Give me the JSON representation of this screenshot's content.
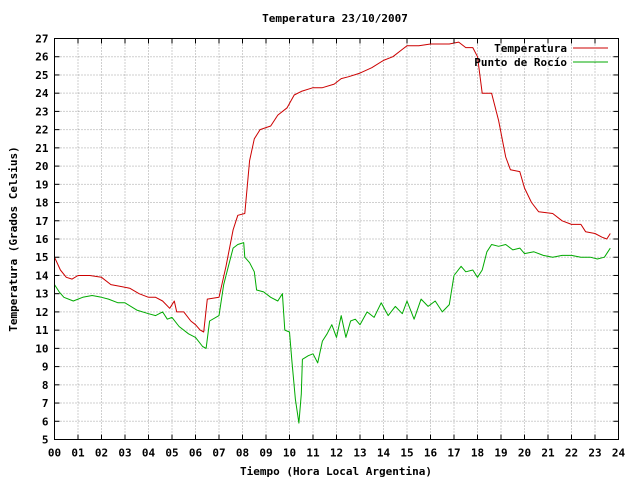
{
  "chart_data": {
    "type": "line",
    "title": "Temperatura 23/10/2007",
    "xlabel": "Tiempo (Hora Local Argentina)",
    "ylabel": "Temperatura (Grados Celsius)",
    "xlim": [
      0,
      24
    ],
    "ylim": [
      5,
      27
    ],
    "x_ticks": [
      "00",
      "01",
      "02",
      "03",
      "04",
      "05",
      "06",
      "07",
      "08",
      "09",
      "10",
      "11",
      "12",
      "13",
      "14",
      "15",
      "16",
      "17",
      "18",
      "19",
      "20",
      "21",
      "22",
      "23",
      "24"
    ],
    "y_ticks": [
      "5",
      "6",
      "7",
      "8",
      "9",
      "10",
      "11",
      "12",
      "13",
      "14",
      "15",
      "16",
      "17",
      "18",
      "19",
      "20",
      "21",
      "22",
      "23",
      "24",
      "25",
      "26",
      "27"
    ],
    "grid": true,
    "legend_position": "top-right",
    "series": [
      {
        "name": "Temperatura",
        "color": "#cc0000",
        "points": [
          [
            0.0,
            15.0
          ],
          [
            0.25,
            14.3
          ],
          [
            0.5,
            13.9
          ],
          [
            0.75,
            13.8
          ],
          [
            1.0,
            14.0
          ],
          [
            1.5,
            14.0
          ],
          [
            2.0,
            13.9
          ],
          [
            2.4,
            13.5
          ],
          [
            2.8,
            13.4
          ],
          [
            3.2,
            13.3
          ],
          [
            3.6,
            13.0
          ],
          [
            4.0,
            12.8
          ],
          [
            4.3,
            12.8
          ],
          [
            4.6,
            12.6
          ],
          [
            4.9,
            12.2
          ],
          [
            5.1,
            12.6
          ],
          [
            5.2,
            12.0
          ],
          [
            5.5,
            12.0
          ],
          [
            5.8,
            11.5
          ],
          [
            6.0,
            11.3
          ],
          [
            6.2,
            11.0
          ],
          [
            6.35,
            10.9
          ],
          [
            6.5,
            12.7
          ],
          [
            7.0,
            12.8
          ],
          [
            7.3,
            14.5
          ],
          [
            7.6,
            16.5
          ],
          [
            7.8,
            17.3
          ],
          [
            8.1,
            17.4
          ],
          [
            8.3,
            20.3
          ],
          [
            8.5,
            21.5
          ],
          [
            8.75,
            22.0
          ],
          [
            9.2,
            22.2
          ],
          [
            9.5,
            22.8
          ],
          [
            9.9,
            23.2
          ],
          [
            10.2,
            23.9
          ],
          [
            10.5,
            24.1
          ],
          [
            11.0,
            24.3
          ],
          [
            11.4,
            24.3
          ],
          [
            11.9,
            24.5
          ],
          [
            12.2,
            24.8
          ],
          [
            12.5,
            24.9
          ],
          [
            13.0,
            25.1
          ],
          [
            13.5,
            25.4
          ],
          [
            14.0,
            25.8
          ],
          [
            14.4,
            26.0
          ],
          [
            14.8,
            26.4
          ],
          [
            15.0,
            26.6
          ],
          [
            15.5,
            26.6
          ],
          [
            16.0,
            26.7
          ],
          [
            16.4,
            26.7
          ],
          [
            16.8,
            26.7
          ],
          [
            17.2,
            26.8
          ],
          [
            17.5,
            26.5
          ],
          [
            17.8,
            26.5
          ],
          [
            18.0,
            26.0
          ],
          [
            18.2,
            24.0
          ],
          [
            18.6,
            24.0
          ],
          [
            18.9,
            22.5
          ],
          [
            19.2,
            20.5
          ],
          [
            19.4,
            19.8
          ],
          [
            19.8,
            19.7
          ],
          [
            20.0,
            18.8
          ],
          [
            20.3,
            18.0
          ],
          [
            20.6,
            17.5
          ],
          [
            21.2,
            17.4
          ],
          [
            21.6,
            17.0
          ],
          [
            22.0,
            16.8
          ],
          [
            22.4,
            16.8
          ],
          [
            22.6,
            16.4
          ],
          [
            23.0,
            16.3
          ],
          [
            23.3,
            16.1
          ],
          [
            23.5,
            16.0
          ],
          [
            23.65,
            16.3
          ]
        ]
      },
      {
        "name": "Punto de Rocío",
        "color": "#00aa00",
        "points": [
          [
            0.0,
            13.5
          ],
          [
            0.2,
            13.1
          ],
          [
            0.4,
            12.8
          ],
          [
            0.8,
            12.6
          ],
          [
            1.2,
            12.8
          ],
          [
            1.6,
            12.9
          ],
          [
            2.0,
            12.8
          ],
          [
            2.3,
            12.7
          ],
          [
            2.7,
            12.5
          ],
          [
            3.0,
            12.5
          ],
          [
            3.5,
            12.1
          ],
          [
            4.0,
            11.9
          ],
          [
            4.3,
            11.8
          ],
          [
            4.6,
            12.0
          ],
          [
            4.8,
            11.6
          ],
          [
            5.0,
            11.7
          ],
          [
            5.3,
            11.2
          ],
          [
            5.7,
            10.8
          ],
          [
            6.0,
            10.6
          ],
          [
            6.3,
            10.1
          ],
          [
            6.45,
            10.0
          ],
          [
            6.6,
            11.5
          ],
          [
            7.0,
            11.8
          ],
          [
            7.2,
            13.5
          ],
          [
            7.4,
            14.5
          ],
          [
            7.6,
            15.5
          ],
          [
            7.8,
            15.7
          ],
          [
            8.05,
            15.8
          ],
          [
            8.1,
            15.0
          ],
          [
            8.3,
            14.7
          ],
          [
            8.5,
            14.2
          ],
          [
            8.6,
            13.2
          ],
          [
            8.9,
            13.1
          ],
          [
            9.2,
            12.8
          ],
          [
            9.5,
            12.6
          ],
          [
            9.7,
            13.0
          ],
          [
            9.8,
            11.0
          ],
          [
            10.0,
            10.9
          ],
          [
            10.1,
            9.3
          ],
          [
            10.25,
            7.2
          ],
          [
            10.4,
            5.9
          ],
          [
            10.5,
            7.5
          ],
          [
            10.55,
            9.4
          ],
          [
            10.8,
            9.6
          ],
          [
            11.0,
            9.7
          ],
          [
            11.2,
            9.2
          ],
          [
            11.4,
            10.4
          ],
          [
            11.6,
            10.8
          ],
          [
            11.8,
            11.3
          ],
          [
            12.0,
            10.6
          ],
          [
            12.2,
            11.8
          ],
          [
            12.4,
            10.6
          ],
          [
            12.6,
            11.5
          ],
          [
            12.8,
            11.6
          ],
          [
            13.0,
            11.3
          ],
          [
            13.3,
            12.0
          ],
          [
            13.6,
            11.7
          ],
          [
            13.9,
            12.5
          ],
          [
            14.2,
            11.8
          ],
          [
            14.5,
            12.3
          ],
          [
            14.8,
            11.9
          ],
          [
            15.0,
            12.6
          ],
          [
            15.3,
            11.6
          ],
          [
            15.6,
            12.7
          ],
          [
            15.9,
            12.3
          ],
          [
            16.2,
            12.6
          ],
          [
            16.5,
            12.0
          ],
          [
            16.8,
            12.4
          ],
          [
            17.0,
            14.0
          ],
          [
            17.3,
            14.5
          ],
          [
            17.5,
            14.2
          ],
          [
            17.8,
            14.3
          ],
          [
            18.0,
            13.9
          ],
          [
            18.2,
            14.3
          ],
          [
            18.4,
            15.3
          ],
          [
            18.6,
            15.7
          ],
          [
            18.9,
            15.6
          ],
          [
            19.2,
            15.7
          ],
          [
            19.5,
            15.4
          ],
          [
            19.8,
            15.5
          ],
          [
            20.0,
            15.2
          ],
          [
            20.4,
            15.3
          ],
          [
            20.8,
            15.1
          ],
          [
            21.2,
            15.0
          ],
          [
            21.6,
            15.1
          ],
          [
            22.0,
            15.1
          ],
          [
            22.4,
            15.0
          ],
          [
            22.8,
            15.0
          ],
          [
            23.1,
            14.9
          ],
          [
            23.4,
            15.0
          ],
          [
            23.55,
            15.3
          ],
          [
            23.65,
            15.5
          ]
        ]
      }
    ]
  }
}
